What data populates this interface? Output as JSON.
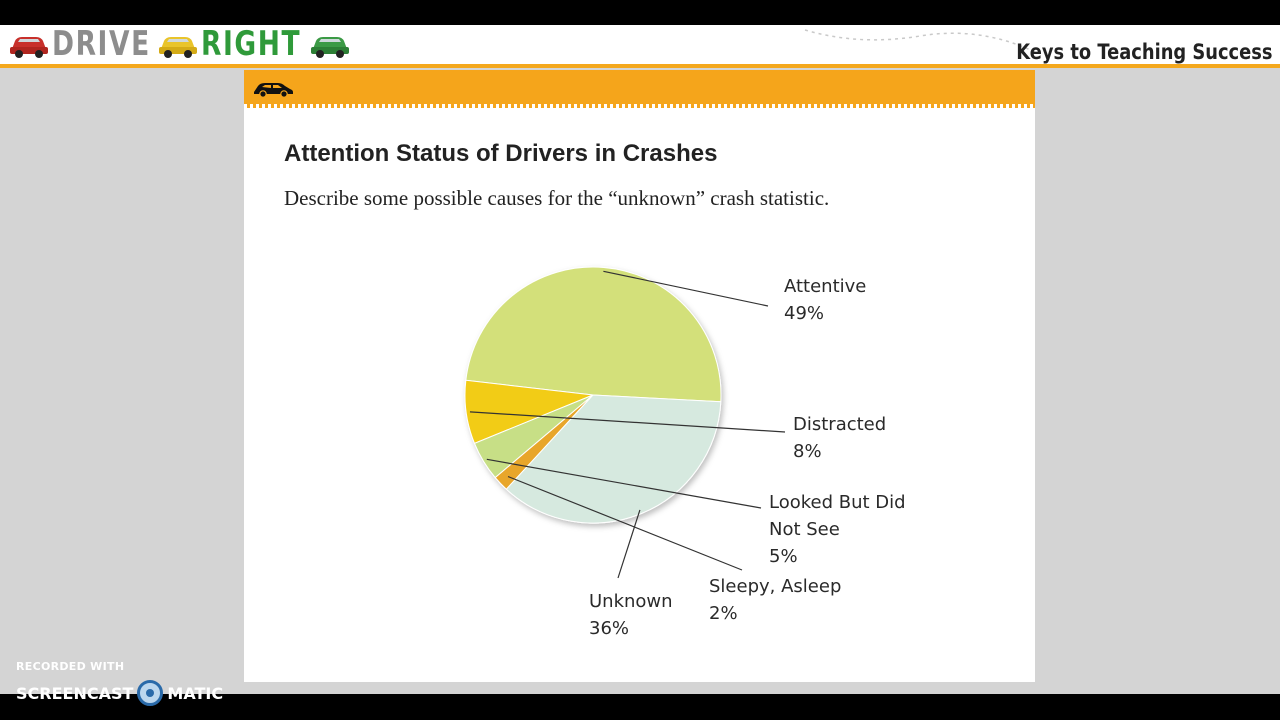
{
  "header": {
    "logo_left": "DRIVE",
    "logo_right": "RIGHT",
    "tagline": "Keys to Teaching Success"
  },
  "icons": [
    "red-car-icon",
    "yellow-car-icon",
    "green-car-icon",
    "car-silhouette-icon"
  ],
  "colors": {
    "accent": "#f5a51b",
    "logo_right": "#2f9a3a",
    "logo_left": "#8d8d8d"
  },
  "slide": {
    "title": "Attention Status of Drivers in Crashes",
    "subtitle": "Describe some possible causes for the “unknown” crash statistic."
  },
  "chart_data": {
    "type": "pie",
    "slices": [
      {
        "label": "Attentive",
        "value_text": "49%",
        "value": 49,
        "color": "#d3e07a"
      },
      {
        "label": "Distracted",
        "value_text": "8%",
        "value": 8,
        "color": "#f2cc14"
      },
      {
        "label": "Looked But Did Not See",
        "value_text": "5%",
        "value": 5,
        "color": "#c7df86"
      },
      {
        "label": "Sleepy, Asleep",
        "value_text": "2%",
        "value": 2,
        "color": "#e8a62b"
      },
      {
        "label": "Unknown",
        "value_text": "36%",
        "value": 36,
        "color": "#d6e9df"
      }
    ]
  },
  "watermark": {
    "line1": "RECORDED WITH",
    "brand_left": "SCREENCAST",
    "brand_right": "MATIC"
  }
}
